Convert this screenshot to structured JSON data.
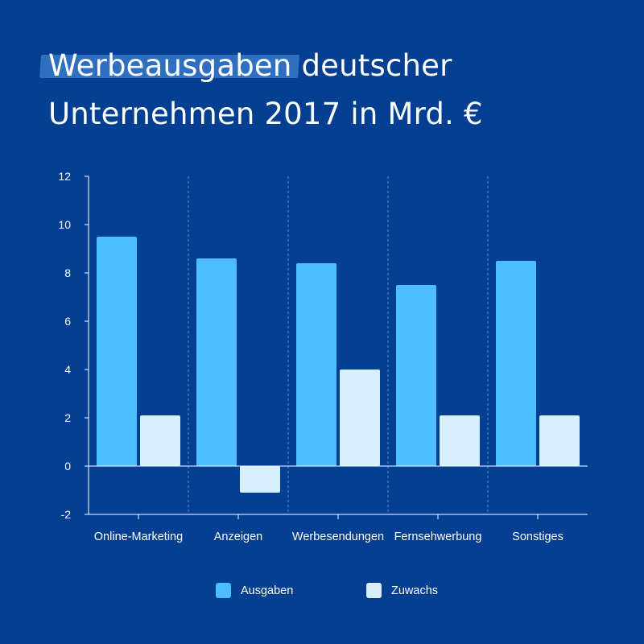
{
  "title": {
    "highlight": "Werbeausgaben",
    "rest_line1": " deutscher",
    "line2": "Unternehmen 2017 in Mrd. €"
  },
  "colors": {
    "background": "#043f92",
    "ausgaben": "#4dbdff",
    "zuwachs": "#d6efff",
    "axis": "#ffffff"
  },
  "chart_data": {
    "type": "bar",
    "categories": [
      "Online-Marketing",
      "Anzeigen",
      "Werbesendungen",
      "Fernsehwerbung",
      "Sonstiges"
    ],
    "series": [
      {
        "name": "Ausgaben",
        "values": [
          9.5,
          8.6,
          8.4,
          7.5,
          8.5
        ]
      },
      {
        "name": "Zuwachs",
        "values": [
          2.1,
          -1.1,
          4.0,
          2.1,
          2.1
        ]
      }
    ],
    "ylim": [
      -2,
      12
    ],
    "yticks": [
      -2,
      0,
      2,
      4,
      6,
      8,
      10,
      12
    ],
    "grid": false,
    "legend_position": "bottom"
  }
}
